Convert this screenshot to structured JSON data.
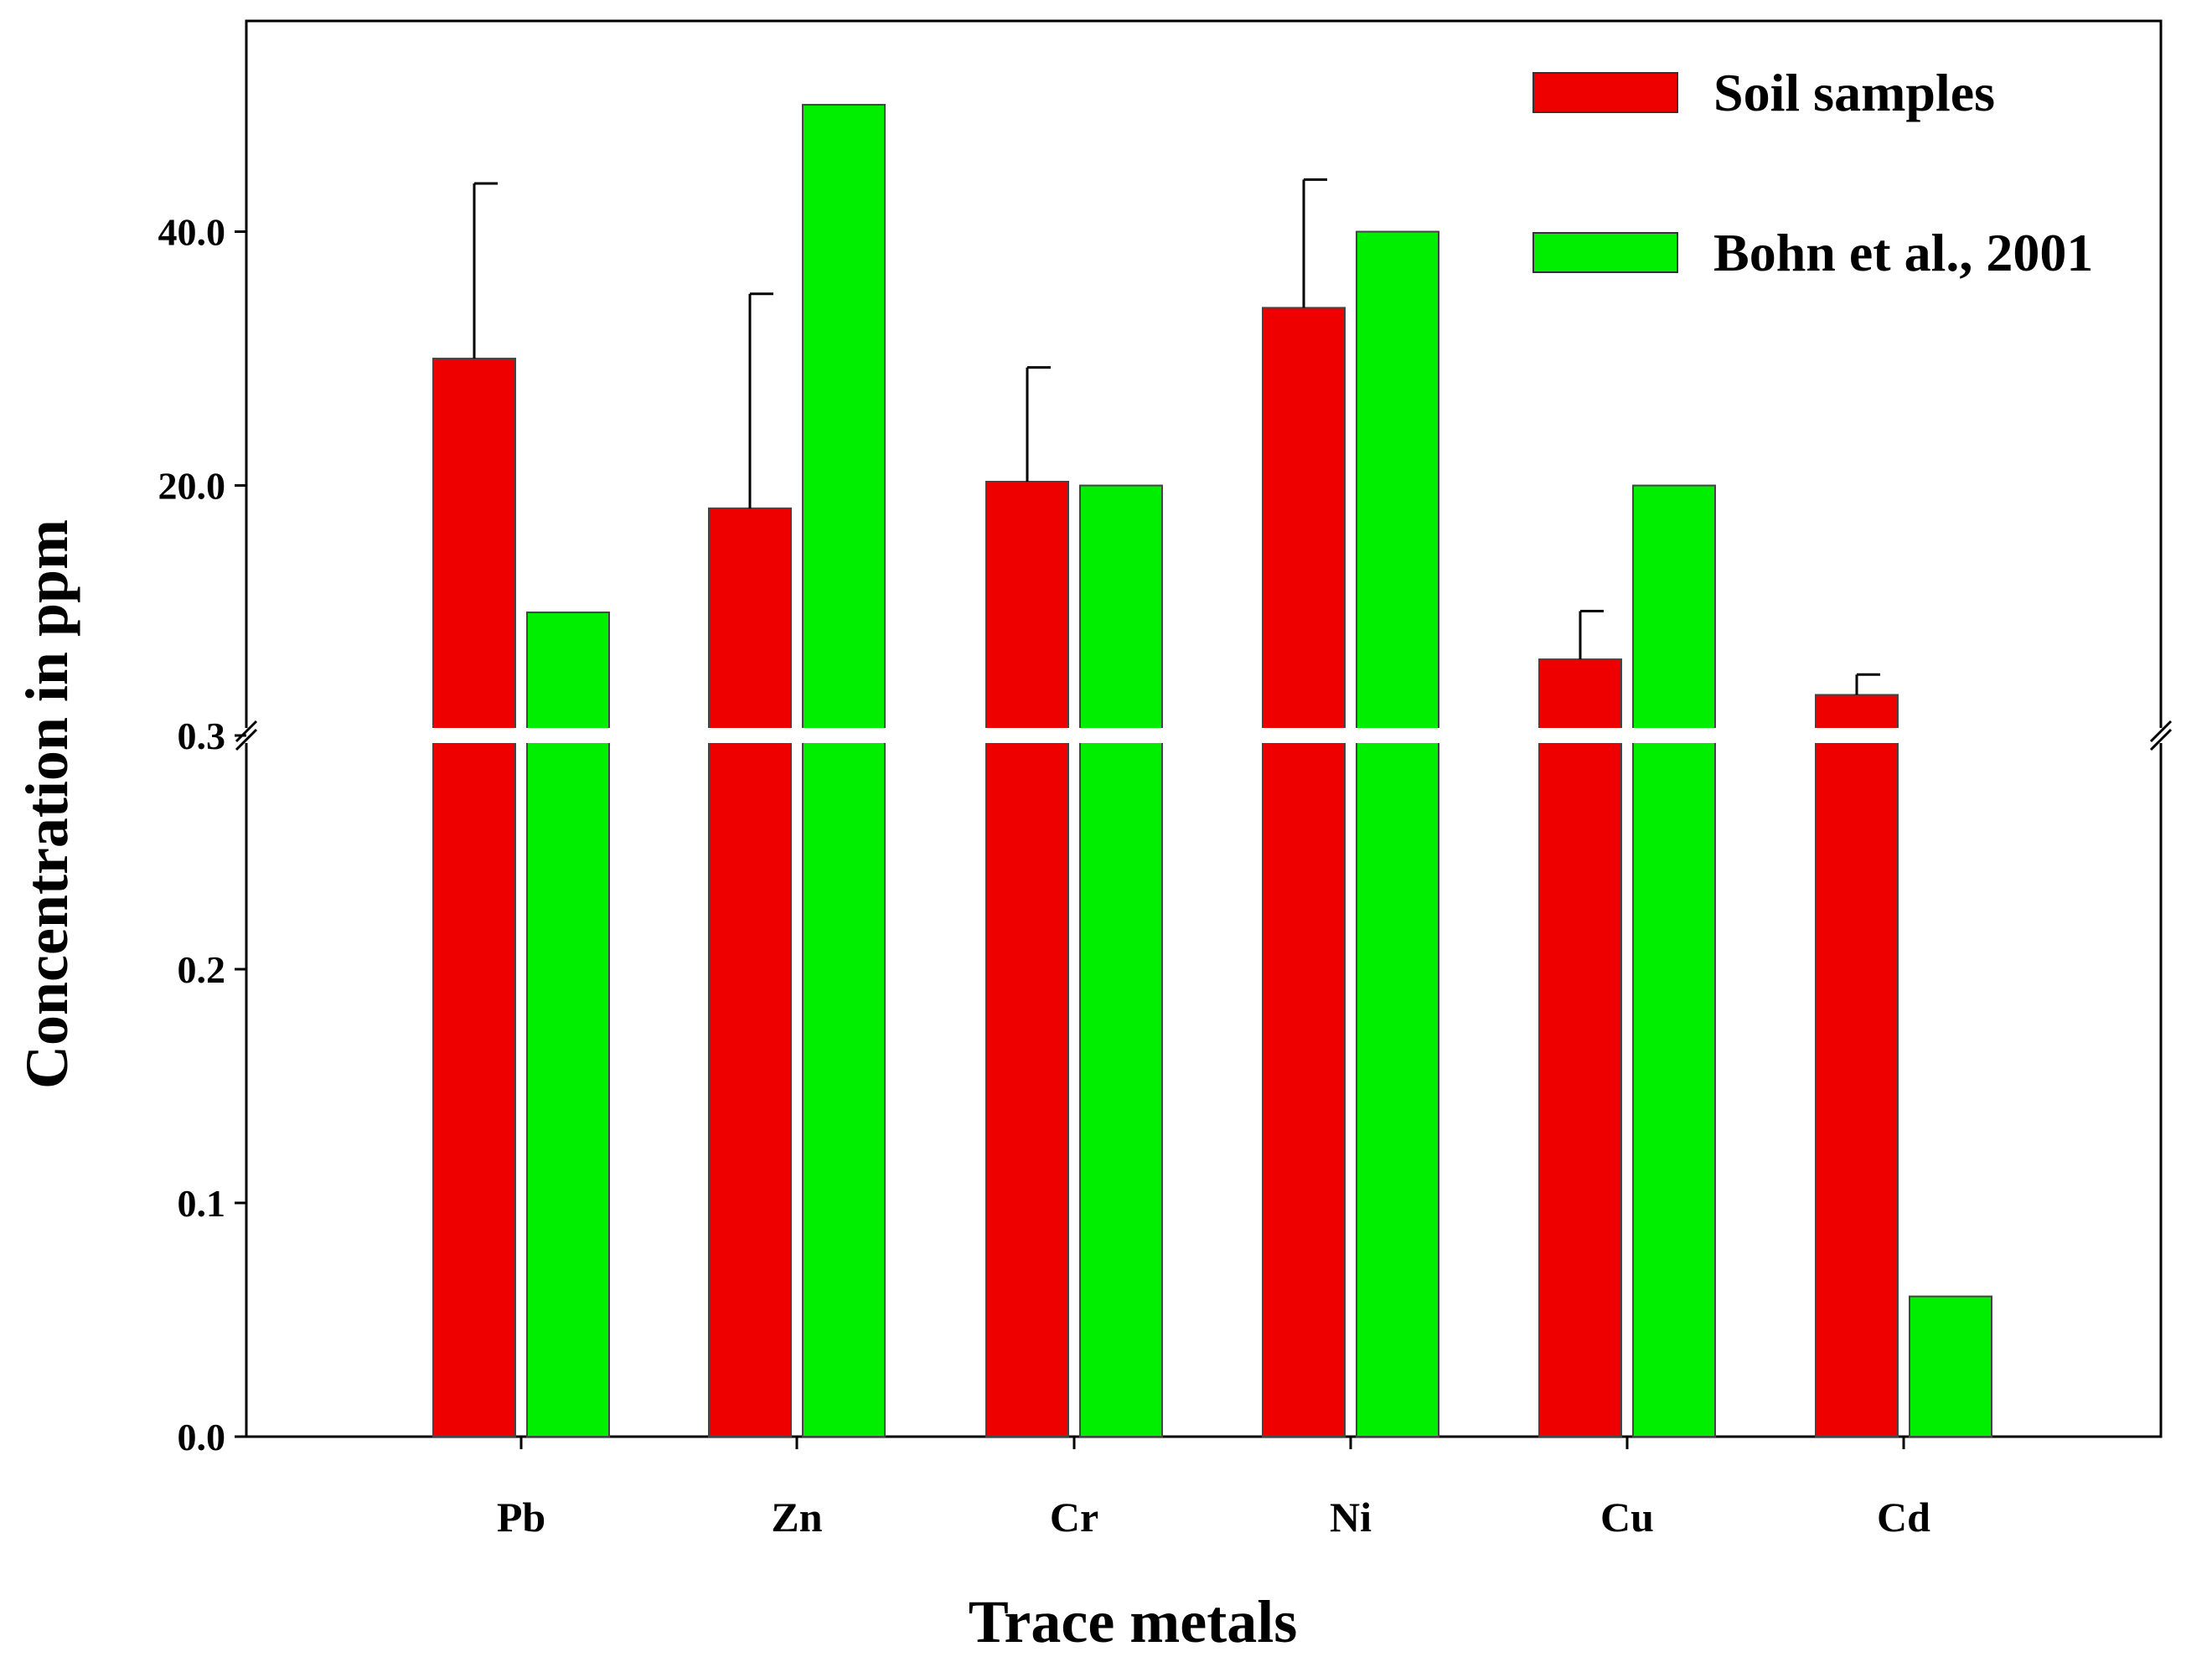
{
  "chart_data": {
    "type": "bar",
    "xlabel": "Trace metals",
    "ylabel": "Concentration in ppm",
    "categories": [
      "Pb",
      "Zn",
      "Cr",
      "Ni",
      "Cu",
      "Cd"
    ],
    "series": [
      {
        "name": "Soil samples",
        "color": "#ee0000",
        "values": [
          30.0,
          18.2,
          20.3,
          34.0,
          6.3,
          3.5
        ],
        "errors_plus": [
          13.8,
          16.9,
          9.0,
          10.1,
          3.8,
          1.6
        ]
      },
      {
        "name": "Bohn et al., 2001",
        "color": "#00ee00",
        "values": [
          10.0,
          50.0,
          20.0,
          40.0,
          20.0,
          0.06
        ]
      }
    ],
    "y_axis": {
      "broken": true,
      "lower_segment": {
        "range": [
          0.0,
          0.3
        ],
        "ticks": [
          "0.0",
          "0.1",
          "0.2",
          "0.3"
        ]
      },
      "upper_segment": {
        "range": [
          0.3,
          50.5
        ],
        "ticks": [
          "20.0",
          "40.0"
        ]
      }
    },
    "legend_position": "top-right",
    "grid": false
  }
}
